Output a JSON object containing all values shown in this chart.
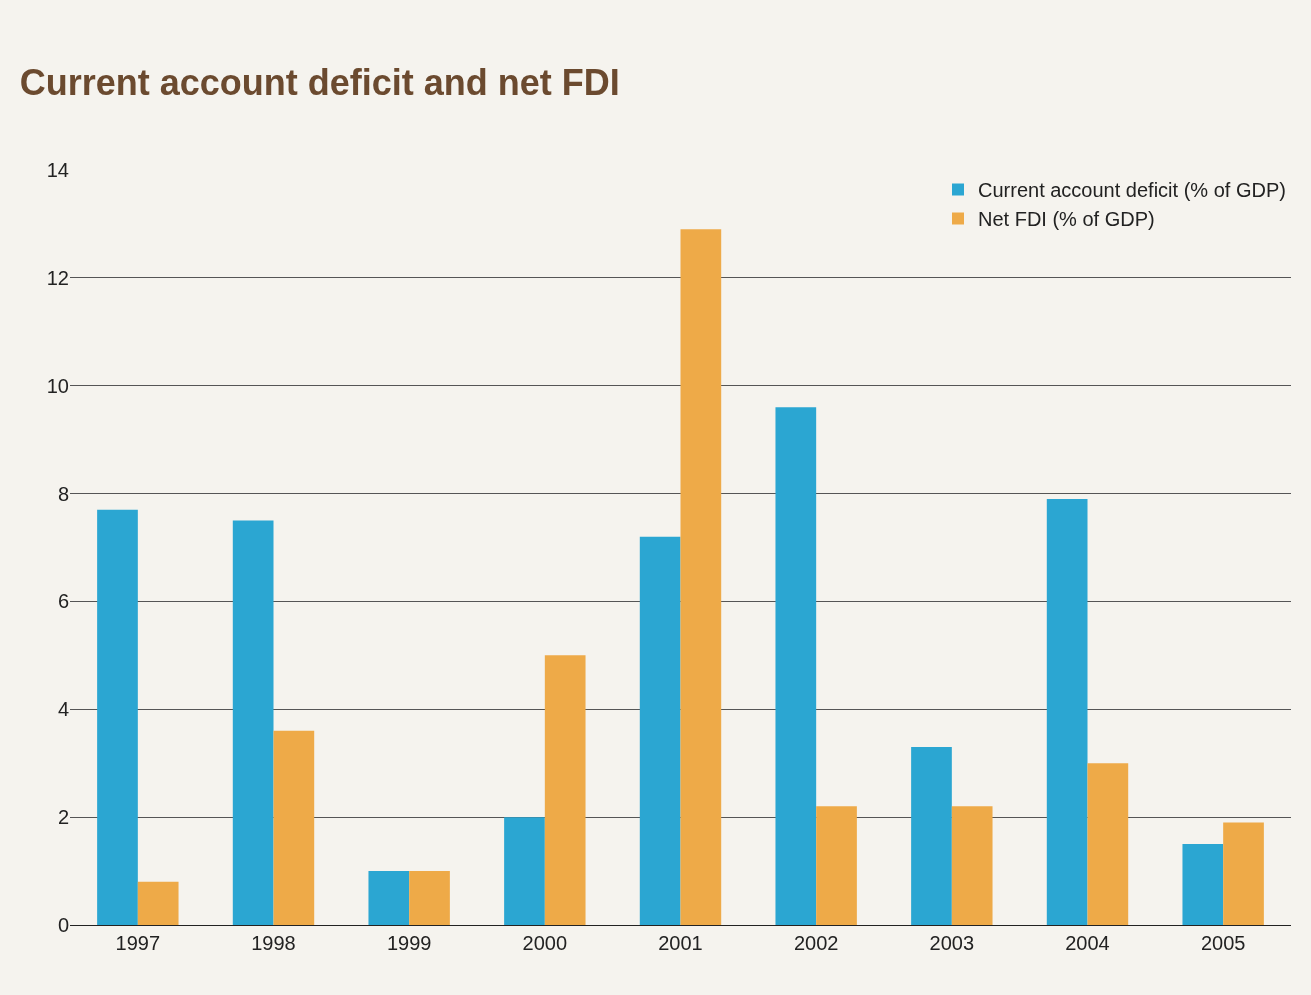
{
  "chart_data": {
    "type": "bar",
    "title": "Current account deficit and net FDI",
    "categories": [
      "1997",
      "1998",
      "1999",
      "2000",
      "2001",
      "2002",
      "2003",
      "2004",
      "2005"
    ],
    "series": [
      {
        "name": "Current account deficit (% of GDP)",
        "color": "#2ba6d2",
        "values": [
          7.7,
          7.5,
          1.0,
          2.0,
          7.2,
          9.6,
          3.3,
          7.9,
          1.5
        ]
      },
      {
        "name": "Net FDI (% of GDP)",
        "color": "#eeaa48",
        "values": [
          0.8,
          3.6,
          1.0,
          5.0,
          12.9,
          2.2,
          2.2,
          3.0,
          1.9
        ]
      }
    ],
    "ylim": [
      0,
      14
    ],
    "yticks": [
      0,
      2,
      4,
      6,
      8,
      10,
      12,
      14
    ],
    "grid": "y",
    "legend": "top right"
  }
}
